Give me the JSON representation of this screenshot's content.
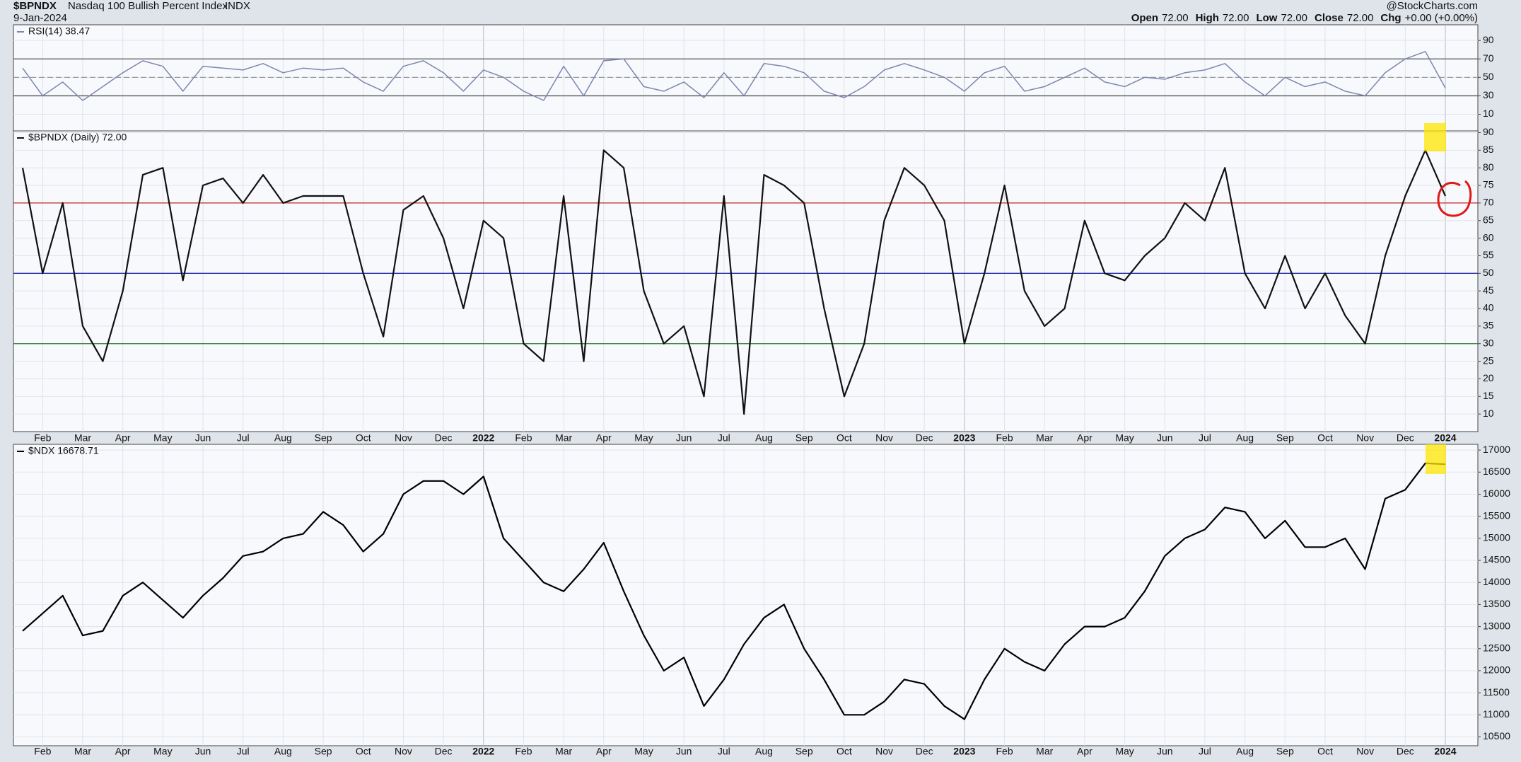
{
  "header": {
    "symbol": "$BPNDX",
    "name": "Nasdaq 100 Bullish Percent Index",
    "exchange": "INDX",
    "date": "9-Jan-2024",
    "source": "@StockCharts.com",
    "quote": [
      {
        "label": "Open",
        "value": "72.00"
      },
      {
        "label": "High",
        "value": "72.00"
      },
      {
        "label": "Low",
        "value": "72.00"
      },
      {
        "label": "Close",
        "value": "72.00"
      },
      {
        "label": "Chg",
        "value": "+0.00 (+0.00%)"
      }
    ]
  },
  "chart_data": [
    {
      "type": "line",
      "legend": "RSI(14) 38.47",
      "color": "#7d86b0",
      "ylim": [
        -8,
        107
      ],
      "yticks": [
        10,
        30,
        50,
        70,
        90
      ],
      "hlines": [
        {
          "value": 70,
          "color": "#555"
        },
        {
          "value": 50,
          "color": "#999"
        },
        {
          "value": 30,
          "color": "#555"
        }
      ],
      "values": [
        60,
        30,
        45,
        25,
        40,
        55,
        68,
        62,
        35,
        62,
        60,
        58,
        65,
        55,
        60,
        58,
        60,
        45,
        35,
        62,
        68,
        55,
        35,
        58,
        50,
        35,
        25,
        62,
        30,
        68,
        70,
        40,
        35,
        45,
        28,
        55,
        30,
        65,
        62,
        55,
        35,
        28,
        40,
        58,
        65,
        58,
        50,
        35,
        55,
        62,
        35,
        40,
        50,
        60,
        45,
        40,
        50,
        48,
        55,
        58,
        65,
        45,
        30,
        50,
        40,
        45,
        35,
        30,
        55,
        70,
        78,
        38.47
      ]
    },
    {
      "type": "line",
      "legend": "$BPNDX (Daily) 72.00",
      "color": "#111",
      "ylim": [
        5,
        90.5
      ],
      "yticks": [
        10,
        15,
        20,
        25,
        30,
        35,
        40,
        45,
        50,
        55,
        60,
        65,
        70,
        75,
        80,
        85,
        90
      ],
      "hlines": [
        {
          "value": 70,
          "color": "#c62828"
        },
        {
          "value": 50,
          "color": "#2a2aa8"
        },
        {
          "value": 30,
          "color": "#2e7d32"
        }
      ],
      "categories": [
        null,
        "Feb",
        null,
        "Mar",
        null,
        "Apr",
        null,
        "May",
        null,
        "Jun",
        null,
        "Jul",
        null,
        "Aug",
        null,
        "Sep",
        null,
        "Oct",
        null,
        "Nov",
        null,
        "Dec",
        null,
        "2022",
        null,
        "Feb",
        null,
        "Mar",
        null,
        "Apr",
        null,
        "May",
        null,
        "Jun",
        null,
        "Jul",
        null,
        "Aug",
        null,
        "Sep",
        null,
        "Oct",
        null,
        "Nov",
        null,
        "Dec",
        null,
        "2023",
        null,
        "Feb",
        null,
        "Mar",
        null,
        "Apr",
        null,
        "May",
        null,
        "Jun",
        null,
        "Jul",
        null,
        "Aug",
        null,
        "Sep",
        null,
        "Oct",
        null,
        "Nov",
        null,
        "Dec",
        null,
        "2024"
      ],
      "values": [
        80,
        50,
        70,
        35,
        25,
        45,
        78,
        80,
        48,
        75,
        77,
        70,
        78,
        70,
        72,
        72,
        72,
        50,
        32,
        68,
        72,
        60,
        40,
        65,
        60,
        30,
        25,
        72,
        25,
        85,
        80,
        45,
        30,
        35,
        15,
        72,
        10,
        78,
        75,
        70,
        40,
        15,
        30,
        65,
        80,
        75,
        65,
        30,
        50,
        75,
        45,
        35,
        40,
        65,
        50,
        48,
        55,
        60,
        70,
        65,
        80,
        50,
        40,
        55,
        40,
        50,
        38,
        30,
        55,
        72,
        85,
        72
      ]
    },
    {
      "type": "line",
      "legend": "$NDX 16678.71",
      "color": "#000",
      "ylim": [
        10300,
        17130
      ],
      "yticks": [
        10500,
        11000,
        11500,
        12000,
        12500,
        13000,
        13500,
        14000,
        14500,
        15000,
        15500,
        16000,
        16500,
        17000
      ],
      "categories": [
        null,
        "Feb",
        null,
        "Mar",
        null,
        "Apr",
        null,
        "May",
        null,
        "Jun",
        null,
        "Jul",
        null,
        "Aug",
        null,
        "Sep",
        null,
        "Oct",
        null,
        "Nov",
        null,
        "Dec",
        null,
        "2022",
        null,
        "Feb",
        null,
        "Mar",
        null,
        "Apr",
        null,
        "May",
        null,
        "Jun",
        null,
        "Jul",
        null,
        "Aug",
        null,
        "Sep",
        null,
        "Oct",
        null,
        "Nov",
        null,
        "Dec",
        null,
        "2023",
        null,
        "Feb",
        null,
        "Mar",
        null,
        "Apr",
        null,
        "May",
        null,
        "Jun",
        null,
        "Jul",
        null,
        "Aug",
        null,
        "Sep",
        null,
        "Oct",
        null,
        "Nov",
        null,
        "Dec",
        null,
        "2024"
      ],
      "values": [
        12900,
        13300,
        13700,
        12800,
        12900,
        13700,
        14000,
        13600,
        13200,
        13700,
        14100,
        14600,
        14700,
        15000,
        15100,
        15600,
        15300,
        14700,
        15100,
        16000,
        16300,
        16300,
        16000,
        16400,
        15000,
        14500,
        14000,
        13800,
        14300,
        14900,
        13800,
        12800,
        12000,
        12300,
        11200,
        11800,
        12600,
        13200,
        13500,
        12500,
        11800,
        11000,
        11000,
        11300,
        11800,
        11700,
        11200,
        10900,
        11800,
        12500,
        12200,
        12000,
        12600,
        13000,
        13000,
        13200,
        13800,
        14600,
        15000,
        15200,
        15700,
        15600,
        15000,
        15400,
        14800,
        14800,
        15000,
        14300,
        15900,
        16100,
        16700,
        16678.71
      ]
    }
  ]
}
